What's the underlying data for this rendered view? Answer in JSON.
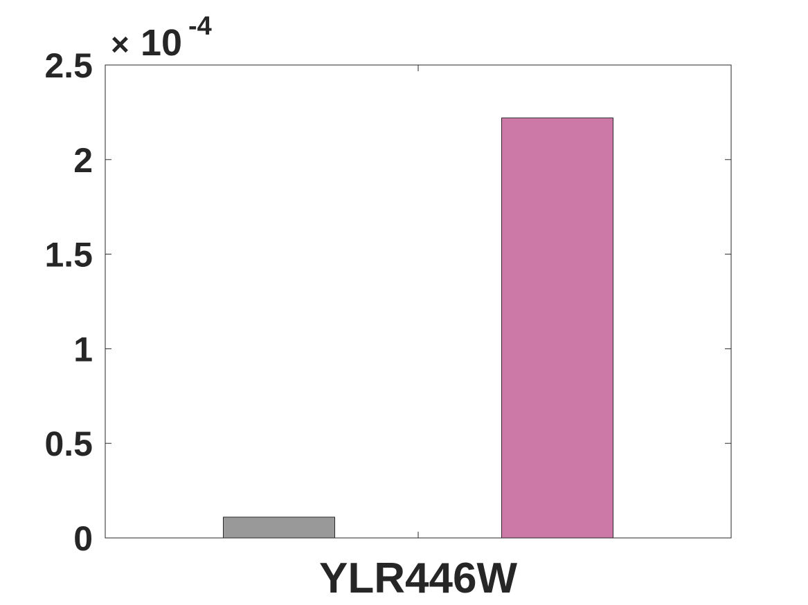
{
  "chart_data": {
    "type": "bar",
    "categories": [
      "YLR446W"
    ],
    "series": [
      {
        "values": [
          1.1e-05
        ],
        "color": "#999999"
      },
      {
        "values": [
          0.000222
        ],
        "color": "#cc79a7"
      }
    ],
    "scale_factor": {
      "symbol": "×",
      "base": "10",
      "exponent": "-4"
    },
    "y_ticks": [
      {
        "value": 0,
        "label": "0"
      },
      {
        "value": 5e-05,
        "label": "0.5"
      },
      {
        "value": 0.0001,
        "label": "1"
      },
      {
        "value": 0.00015,
        "label": "1.5"
      },
      {
        "value": 0.0002,
        "label": "2"
      },
      {
        "value": 0.00025,
        "label": "2.5"
      }
    ],
    "ylim": [
      0,
      0.00025
    ],
    "title": "",
    "xlabel": "",
    "ylabel": "",
    "grid": false,
    "legend": "none",
    "colors": {
      "axis": "#262626",
      "bar_edge": "#000000"
    }
  }
}
